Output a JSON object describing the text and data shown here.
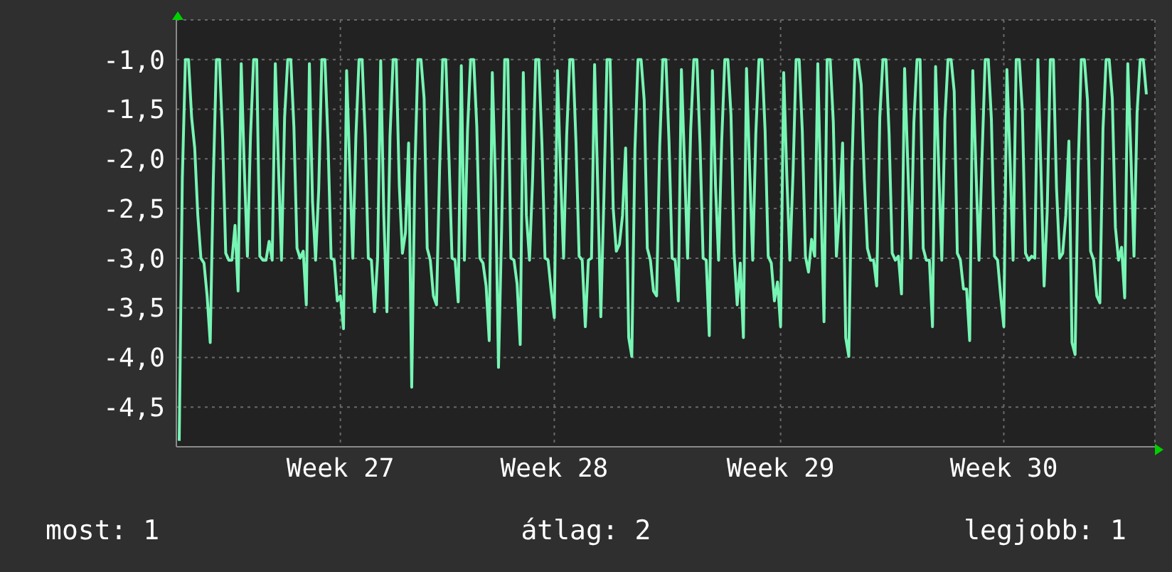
{
  "chart_data": {
    "type": "line",
    "color": "#77f5b4",
    "grid": true,
    "marker": "none",
    "line_style": "solid",
    "categories": [
      null,
      null,
      null,
      null,
      null,
      null,
      null,
      null,
      null,
      null,
      null,
      null,
      null,
      null,
      null,
      null,
      null,
      null,
      null,
      null,
      null,
      null,
      null,
      null,
      null,
      null,
      null,
      null,
      null,
      null,
      null,
      null,
      null,
      null,
      null,
      null,
      null,
      null,
      null,
      null,
      null,
      null,
      null,
      null,
      null,
      null,
      null,
      null,
      null,
      null,
      null,
      null,
      "Week 27",
      null,
      null,
      null,
      null,
      null,
      null,
      null,
      null,
      null,
      null,
      null,
      null,
      null,
      null,
      null,
      null,
      null,
      null,
      null,
      null,
      null,
      null,
      null,
      null,
      null,
      null,
      null,
      null,
      null,
      null,
      null,
      null,
      null,
      null,
      null,
      null,
      null,
      null,
      null,
      null,
      null,
      null,
      null,
      null,
      null,
      null,
      null,
      null,
      null,
      null,
      null,
      null,
      null,
      null,
      null,
      null,
      null,
      null,
      null,
      null,
      null,
      null,
      null,
      null,
      null,
      null,
      null,
      null,
      "Week 28",
      null,
      null,
      null,
      null,
      null,
      null,
      null,
      null,
      null,
      null,
      null,
      null,
      null,
      null,
      null,
      null,
      null,
      null,
      null,
      null,
      null,
      null,
      null,
      null,
      null,
      null,
      null,
      null,
      null,
      null,
      null,
      null,
      null,
      null,
      null,
      null,
      null,
      null,
      null,
      null,
      null,
      null,
      null,
      null,
      null,
      null,
      null,
      null,
      null,
      null,
      null,
      null,
      null,
      null,
      null,
      null,
      null,
      null,
      null,
      null,
      null,
      null,
      null,
      null,
      null,
      null,
      null,
      null,
      null,
      null,
      null,
      null,
      "Week 29",
      null,
      null,
      null,
      null,
      null,
      null,
      null,
      null,
      null,
      null,
      null,
      null,
      null,
      null,
      null,
      null,
      null,
      null,
      null,
      null,
      null,
      null,
      null,
      null,
      null,
      null,
      null,
      null,
      null,
      null,
      null,
      null,
      null,
      null,
      null,
      null,
      null,
      null,
      null,
      null,
      null,
      null,
      null,
      null,
      null,
      null,
      null,
      null,
      null,
      null,
      null,
      null,
      null,
      null,
      null,
      null,
      null,
      null,
      null,
      null,
      null,
      null,
      null,
      null,
      null,
      null,
      null,
      null,
      null,
      null,
      null,
      "Week 30",
      null,
      null,
      null,
      null,
      null,
      null,
      null,
      null,
      null,
      null,
      null,
      null,
      null,
      null,
      null,
      null,
      null,
      null,
      null,
      null,
      null,
      null,
      null,
      null,
      null,
      null,
      null,
      null,
      null,
      null,
      null,
      null,
      null,
      null,
      null,
      null,
      null,
      null,
      null,
      null,
      null,
      null,
      null,
      null,
      null,
      null
    ],
    "ylim": [
      -4.9,
      -0.6
    ],
    "yticks": [
      {
        "value": -4.5,
        "label": "-4,5"
      },
      {
        "value": -4,
        "label": "-4,0"
      },
      {
        "value": -3.5,
        "label": "-3,5"
      },
      {
        "value": -3,
        "label": "-3,0"
      },
      {
        "value": -2.5,
        "label": "-2,5"
      },
      {
        "value": -2,
        "label": "-2,0"
      },
      {
        "value": -1.5,
        "label": "-1,5"
      },
      {
        "value": -1,
        "label": "-1,0"
      }
    ],
    "annotations": [
      "most: 1",
      "átlag: 2",
      "legjobb: 1"
    ],
    "values": [
      -4.84,
      -2.2,
      -1.0,
      -1.0,
      -1.58,
      -1.89,
      -2.57,
      -3.0,
      -3.05,
      -3.38,
      -3.85,
      -2.2,
      -1.0,
      -1.0,
      -1.79,
      -2.95,
      -3.02,
      -3.02,
      -2.67,
      -3.33,
      -1.04,
      -2.1,
      -2.98,
      -1.77,
      -1.0,
      -1.0,
      -2.98,
      -3.02,
      -3.02,
      -2.83,
      -3.02,
      -1.04,
      -2.05,
      -3.02,
      -1.58,
      -1.0,
      -1.0,
      -1.68,
      -2.9,
      -3.0,
      -2.93,
      -3.47,
      -1.04,
      -2.43,
      -3.02,
      -2.31,
      -1.0,
      -1.0,
      -1.82,
      -3.0,
      -3.02,
      -3.43,
      -3.38,
      -3.71,
      -1.11,
      -2.08,
      -3.0,
      -1.77,
      -1.0,
      -1.0,
      -1.77,
      -3.0,
      -3.02,
      -3.54,
      -3.0,
      -1.01,
      -2.57,
      -3.54,
      -1.77,
      -1.0,
      -1.0,
      -2.27,
      -2.95,
      -2.74,
      -1.84,
      -4.3,
      -2.15,
      -1.0,
      -1.0,
      -1.39,
      -2.9,
      -3.02,
      -3.38,
      -3.47,
      -2.1,
      -1.0,
      -1.0,
      -1.96,
      -3.0,
      -3.02,
      -3.44,
      -1.06,
      -3.02,
      -1.72,
      -1.0,
      -1.0,
      -1.68,
      -3.0,
      -3.05,
      -3.28,
      -3.83,
      -1.13,
      -2.22,
      -4.1,
      -2.72,
      -1.0,
      -1.0,
      -3.0,
      -3.02,
      -3.26,
      -3.87,
      -1.13,
      -2.57,
      -3.02,
      -2.2,
      -1.0,
      -1.0,
      -1.84,
      -3.0,
      -3.02,
      -3.33,
      -3.6,
      -1.11,
      -2.13,
      -3.0,
      -1.75,
      -1.0,
      -1.0,
      -1.84,
      -2.98,
      -3.02,
      -3.69,
      -3.02,
      -3.0,
      -1.05,
      -2.27,
      -3.59,
      -2.39,
      -1.0,
      -1.0,
      -2.5,
      -2.93,
      -2.86,
      -2.57,
      -1.89,
      -3.8,
      -3.99,
      -1.91,
      -1.0,
      -1.0,
      -1.41,
      -2.9,
      -3.02,
      -3.33,
      -3.38,
      -1.87,
      -1.0,
      -1.0,
      -1.82,
      -3.0,
      -3.02,
      -3.43,
      -1.1,
      -2.05,
      -3.0,
      -1.7,
      -1.0,
      -1.0,
      -1.84,
      -3.0,
      -3.02,
      -3.78,
      -1.11,
      -2.27,
      -3.02,
      -1.82,
      -1.0,
      -1.0,
      -1.56,
      -2.95,
      -3.47,
      -3.05,
      -3.8,
      -1.09,
      -2.1,
      -3.02,
      -1.75,
      -1.0,
      -1.0,
      -1.72,
      -2.98,
      -3.05,
      -3.43,
      -3.24,
      -3.69,
      -1.13,
      -2.17,
      -3.02,
      -2.15,
      -1.0,
      -1.0,
      -1.72,
      -2.98,
      -3.14,
      -2.81,
      -2.98,
      -1.04,
      -2.41,
      -3.64,
      -1.0,
      -1.0,
      -1.63,
      -2.98,
      -2.53,
      -1.84,
      -3.8,
      -3.99,
      -2.1,
      -1.0,
      -1.0,
      -1.25,
      -2.2,
      -2.9,
      -3.02,
      -3.02,
      -3.28,
      -1.58,
      -1.0,
      -1.0,
      -1.75,
      -2.95,
      -3.02,
      -2.98,
      -3.36,
      -1.09,
      -2.03,
      -3.0,
      -1.63,
      -1.0,
      -1.0,
      -2.9,
      -3.02,
      -3.02,
      -3.69,
      -1.07,
      -2.1,
      -3.02,
      -1.6,
      -1.0,
      -1.0,
      -1.32,
      -2.95,
      -3.02,
      -3.31,
      -3.31,
      -3.83,
      -1.11,
      -2.1,
      -3.02,
      -1.96,
      -1.0,
      -1.0,
      -1.6,
      -2.98,
      -3.02,
      -3.38,
      -3.69,
      -1.1,
      -2.0,
      -3.02,
      -1.0,
      -1.0,
      -1.53,
      -2.95,
      -3.02,
      -2.98,
      -3.0,
      -1.0,
      -2.15,
      -3.28,
      -2.53,
      -1.0,
      -1.0,
      -2.29,
      -3.0,
      -2.95,
      -2.57,
      -1.82,
      -3.85,
      -3.97,
      -2.08,
      -1.0,
      -1.0,
      -1.41,
      -2.93,
      -3.02,
      -3.38,
      -3.45,
      -1.7,
      -1.0,
      -1.0,
      -1.39,
      -2.69,
      -3.02,
      -2.89,
      -3.4,
      -1.04,
      -1.96,
      -2.98,
      -1.53,
      -1.0,
      -1.0,
      -1.35
    ]
  }
}
